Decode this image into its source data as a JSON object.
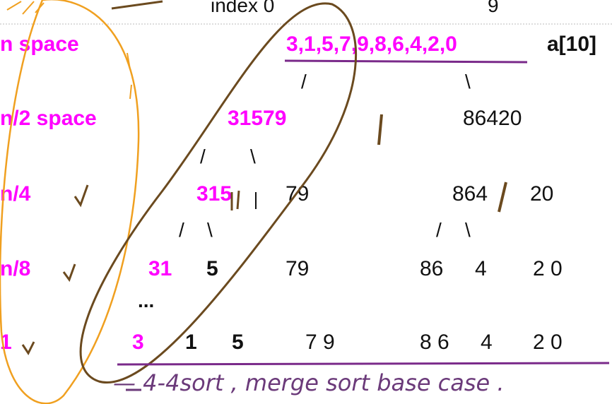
{
  "header": {
    "index_start": "index 0",
    "index_end": "9"
  },
  "rows": {
    "n": {
      "label": "n space",
      "array": "3,1,5,7,9,8,6,4,2,0",
      "array_name": "a[10]",
      "branch_left": "/",
      "branch_right": "\\"
    },
    "n2": {
      "label": "n/2 space",
      "left": "31579",
      "right": "86420",
      "branch_left": "/",
      "branch_right": "\\"
    },
    "n4": {
      "label": "n/4",
      "left_a": "315",
      "left_b": "79",
      "right_a": "864",
      "right_b": "20",
      "branch_a_left": "/",
      "branch_a_right": "\\",
      "branch_b_left": "/",
      "branch_b_right": "\\"
    },
    "n8": {
      "label": "n/8",
      "v1": "31",
      "v2": "5",
      "v3": "79",
      "v4": "86",
      "v5": "4",
      "v6": "2 0"
    },
    "ellipsis": "...",
    "one": {
      "label": "1",
      "v1": "3",
      "v2": "1",
      "v3": "5",
      "v4": "7 9",
      "v5": "8 6",
      "v6": "4",
      "v7": "2 0"
    }
  },
  "handwritten_note": "— 4-4sort , merge sort base case .",
  "colors": {
    "magenta": "#ff00ff",
    "purple_line": "#7a2a8a",
    "ink_brown": "#6b4a1f",
    "ink_orange": "#f0a020",
    "text_black": "#111111"
  }
}
